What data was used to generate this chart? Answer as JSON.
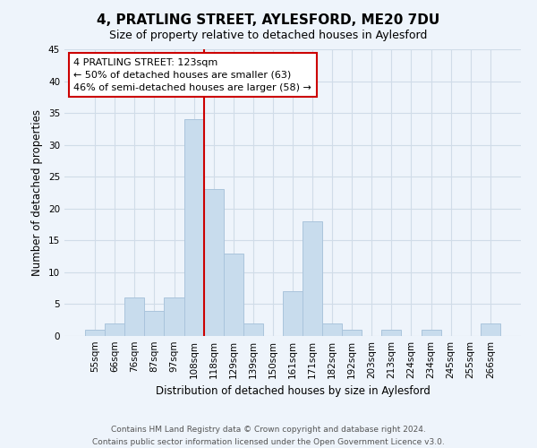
{
  "title": "4, PRATLING STREET, AYLESFORD, ME20 7DU",
  "subtitle": "Size of property relative to detached houses in Aylesford",
  "xlabel": "Distribution of detached houses by size in Aylesford",
  "ylabel": "Number of detached properties",
  "bin_labels": [
    "55sqm",
    "66sqm",
    "76sqm",
    "87sqm",
    "97sqm",
    "108sqm",
    "118sqm",
    "129sqm",
    "139sqm",
    "150sqm",
    "161sqm",
    "171sqm",
    "182sqm",
    "192sqm",
    "203sqm",
    "213sqm",
    "224sqm",
    "234sqm",
    "245sqm",
    "255sqm",
    "266sqm"
  ],
  "bar_heights": [
    1,
    2,
    6,
    4,
    6,
    34,
    23,
    13,
    2,
    0,
    7,
    18,
    2,
    1,
    0,
    1,
    0,
    1,
    0,
    0,
    2
  ],
  "bar_color": "#c8dced",
  "bar_edge_color": "#aac4dc",
  "property_line_color": "#cc0000",
  "annotation_line1": "4 PRATLING STREET: 123sqm",
  "annotation_line2": "← 50% of detached houses are smaller (63)",
  "annotation_line3": "46% of semi-detached houses are larger (58) →",
  "annotation_box_color": "#ffffff",
  "annotation_box_edge": "#cc0000",
  "ylim": [
    0,
    45
  ],
  "yticks": [
    0,
    5,
    10,
    15,
    20,
    25,
    30,
    35,
    40,
    45
  ],
  "footer_line1": "Contains HM Land Registry data © Crown copyright and database right 2024.",
  "footer_line2": "Contains public sector information licensed under the Open Government Licence v3.0.",
  "bg_color": "#eef4fb",
  "grid_color": "#d0dce8",
  "title_fontsize": 11,
  "subtitle_fontsize": 9,
  "axis_label_fontsize": 8.5,
  "tick_fontsize": 7.5,
  "annotation_fontsize": 8,
  "footer_fontsize": 6.5
}
